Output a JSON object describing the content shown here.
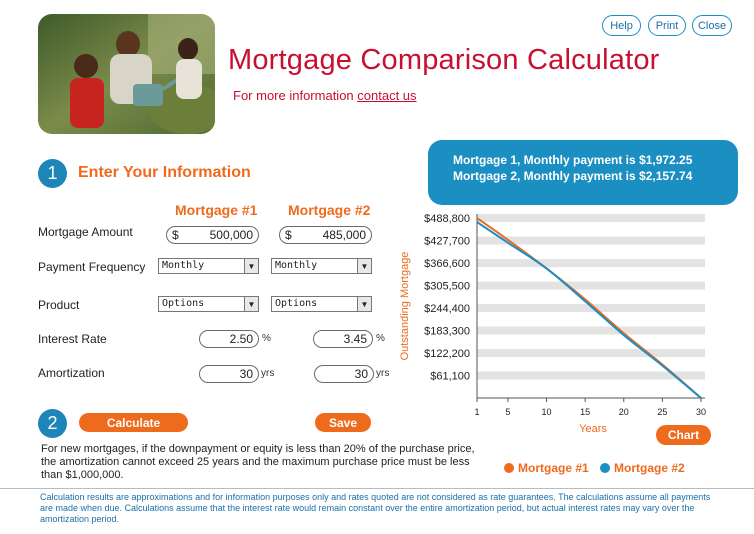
{
  "header": {
    "title": "Mortgage Comparison Calculator",
    "info_prefix": "For more information ",
    "contact_link": "contact us",
    "buttons": {
      "help": "Help",
      "print": "Print",
      "close": "Close"
    }
  },
  "section1": {
    "step": "1",
    "heading": "Enter Your Information",
    "col1": "Mortgage #1",
    "col2": "Mortgage #2",
    "rows": {
      "amount": {
        "label": "Mortgage Amount",
        "currency": "$",
        "m1": "500,000",
        "m2": "485,000"
      },
      "frequency": {
        "label": "Payment Frequency",
        "m1": "Monthly",
        "m2": "Monthly"
      },
      "product": {
        "label": "Product",
        "m1": "Options",
        "m2": "Options"
      },
      "rate": {
        "label": "Interest Rate",
        "m1": "2.50",
        "m2": "3.45",
        "unit": "%"
      },
      "amortization": {
        "label": "Amortization",
        "m1": "30",
        "m2": "30",
        "unit": "yrs"
      }
    }
  },
  "section2": {
    "step": "2",
    "calculate": "Calculate",
    "save": "Save"
  },
  "note": "For new mortgages, if the downpayment or equity is less than 20% of the purchase price, the amortization cannot exceed 25 years and the maximum purchase price must be less than $1,000,000.",
  "disclaimer": "Calculation results are approximations and for information purposes only and rates quoted are not considered as rate guarantees.  The calculations assume all payments are made when due.  Calculations assume that the interest rate would remain constant over the entire amortization period, but actual interest rates may vary over the amortization period.",
  "results": {
    "line1": "Mortgage 1, Monthly payment is $1,972.25",
    "line2": "Mortgage 2, Monthly payment is $2,157.74"
  },
  "chart_button": "Chart",
  "colors": {
    "orange": "#ee6b1e",
    "blue": "#1b8ec2",
    "red": "#c8102e"
  },
  "chart_data": {
    "type": "line",
    "xlabel": "Years",
    "ylabel": "Outstanding Mortgage",
    "xticks": [
      1,
      5,
      10,
      15,
      20,
      25,
      30
    ],
    "yticks": [
      "$488,800",
      "$427,700",
      "$366,600",
      "$305,500",
      "$244,400",
      "$183,300",
      "$122,200",
      "$61,100"
    ],
    "ytick_values": [
      488800,
      427700,
      366600,
      305500,
      244400,
      183300,
      122200,
      61100
    ],
    "xlim": [
      1,
      30
    ],
    "ylim": [
      0,
      500000
    ],
    "series": [
      {
        "name": "Mortgage #1",
        "color": "#ee6b1e",
        "x": [
          1,
          5,
          10,
          15,
          20,
          25,
          30
        ],
        "values": [
          489000,
          430000,
          352000,
          268000,
          176000,
          91000,
          0
        ]
      },
      {
        "name": "Mortgage #2",
        "color": "#1b8ec2",
        "x": [
          1,
          5,
          10,
          15,
          20,
          25,
          30
        ],
        "values": [
          478000,
          422000,
          352000,
          263000,
          171000,
          88000,
          0
        ]
      }
    ],
    "legend": "bottom",
    "grid": true
  }
}
